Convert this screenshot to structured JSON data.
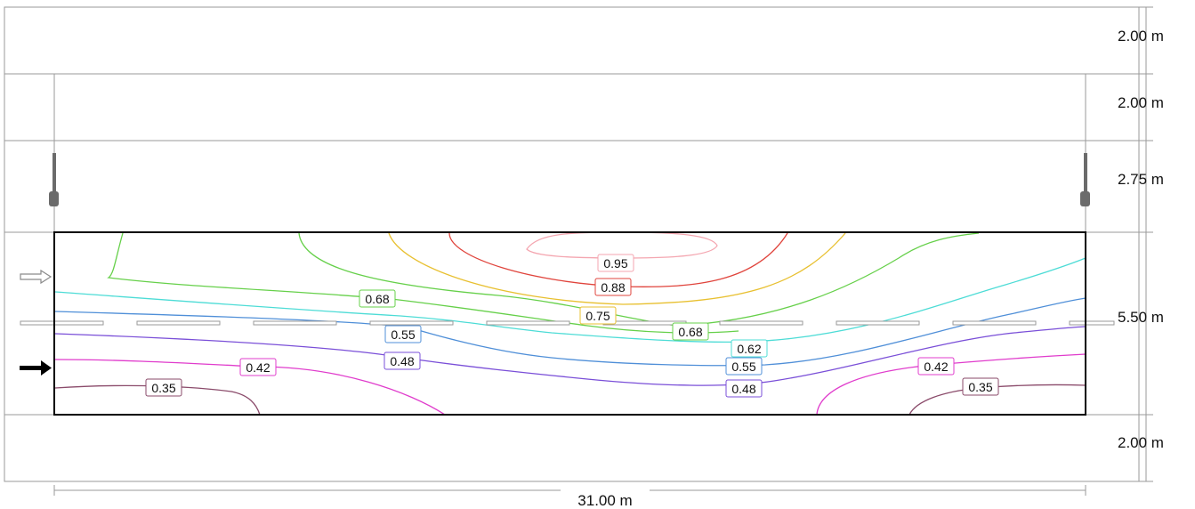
{
  "bands": [
    {
      "label": "2.00 m"
    },
    {
      "label": "2.00 m"
    },
    {
      "label": "2.75 m"
    },
    {
      "label": "5.50 m"
    },
    {
      "label": "2.00 m"
    }
  ],
  "width_label": "31.00 m",
  "traffic_arrows": [
    {
      "name": "traffic-direction-outline-arrow-icon"
    },
    {
      "name": "traffic-direction-solid-arrow-icon"
    }
  ],
  "poles": [
    {
      "name": "lamp-pole-left-icon"
    },
    {
      "name": "lamp-pole-right-icon"
    }
  ],
  "isolines": [
    {
      "value": "0.95",
      "color": "#f4a6b0"
    },
    {
      "value": "0.88",
      "color": "#e0443c"
    },
    {
      "value": "0.75",
      "color": "#e8c030"
    },
    {
      "value": "0.68",
      "color": "#66d04a"
    },
    {
      "value": "0.68",
      "color": "#66d04a"
    },
    {
      "value": "0.62",
      "color": "#4ddcd6"
    },
    {
      "value": "0.55",
      "color": "#4f8fd8"
    },
    {
      "value": "0.55",
      "color": "#4f8fd8"
    },
    {
      "value": "0.48",
      "color": "#7a4fd8"
    },
    {
      "value": "0.48",
      "color": "#7a4fd8"
    },
    {
      "value": "0.42",
      "color": "#e03ccc"
    },
    {
      "value": "0.42",
      "color": "#e03ccc"
    },
    {
      "value": "0.35",
      "color": "#8a4a6a"
    },
    {
      "value": "0.35",
      "color": "#8a4a6a"
    }
  ]
}
